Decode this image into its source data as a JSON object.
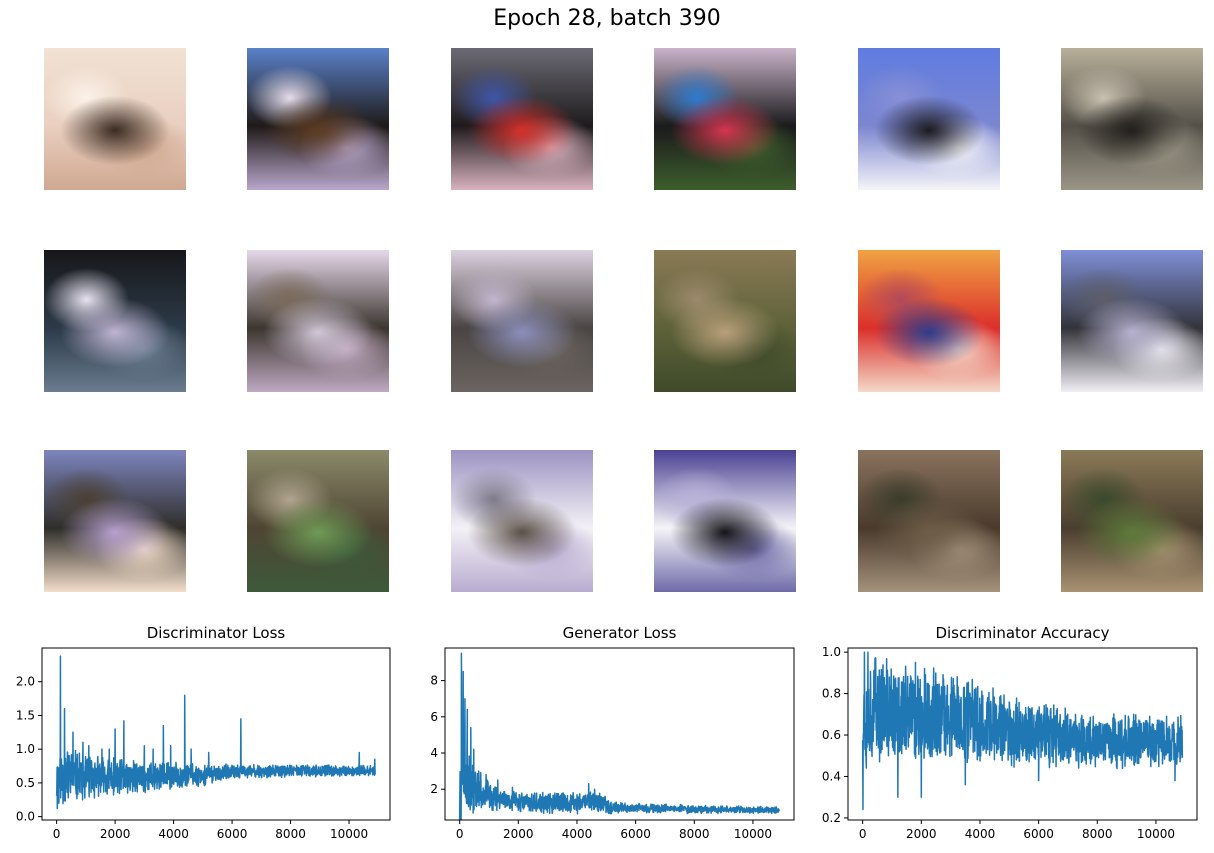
{
  "figure": {
    "title": "Epoch 28, batch 390"
  },
  "samples": [
    {
      "label": "generated sample: cream blob with dark marks",
      "colors": [
        "#f1e2d4",
        "#e9cfc0",
        "#3a2b22",
        "#cfa890",
        "#fbf2e8"
      ]
    },
    {
      "label": "generated sample: dark vehicle on lilac ground",
      "colors": [
        "#5a81c9",
        "#1f1a18",
        "#5d3c22",
        "#b9a7cc",
        "#e5dce8"
      ]
    },
    {
      "label": "generated sample: red vehicle",
      "colors": [
        "#6b6a74",
        "#1f1b1d",
        "#d6302a",
        "#d8b2bf",
        "#3f56a8"
      ]
    },
    {
      "label": "generated sample: colorful car on grass",
      "colors": [
        "#c9b3c9",
        "#1a1a1c",
        "#d4354f",
        "#3d5e2b",
        "#2e7bcf"
      ]
    },
    {
      "label": "generated sample: white boat on blue",
      "colors": [
        "#5f7ce0",
        "#7c86d0",
        "#1b1b20",
        "#f4f4f8",
        "#8890d6"
      ]
    },
    {
      "label": "generated sample: grey truck",
      "colors": [
        "#b8b09a",
        "#545049",
        "#22201c",
        "#9a9585",
        "#c8c0b0"
      ]
    },
    {
      "label": "generated sample: dark scene with white shape",
      "colors": [
        "#17171a",
        "#2c3a48",
        "#bfb4d2",
        "#6a7c90",
        "#e8e2ef"
      ]
    },
    {
      "label": "generated sample: car on lilac",
      "colors": [
        "#e6d8ea",
        "#3c362f",
        "#d2c7d8",
        "#bfa9c1",
        "#7a6a5a"
      ]
    },
    {
      "label": "generated sample: figure on lilac",
      "colors": [
        "#ddd2e0",
        "#4a4544",
        "#8c8fbb",
        "#6b6460",
        "#c2b6cc"
      ]
    },
    {
      "label": "generated sample: foliage",
      "colors": [
        "#8a7a56",
        "#5e6238",
        "#b9a07b",
        "#3f4a2a",
        "#9c8a6d"
      ]
    },
    {
      "label": "generated sample: red and blue blob",
      "colors": [
        "#f0a243",
        "#db2f2b",
        "#2c3d8c",
        "#f4d8c8",
        "#b24a5a"
      ]
    },
    {
      "label": "generated sample: grey shape on blue",
      "colors": [
        "#7f8fd8",
        "#33343a",
        "#b7b2d0",
        "#f1eff5",
        "#5d5e6a"
      ]
    },
    {
      "label": "generated sample: dark object on lilac",
      "colors": [
        "#7d85bd",
        "#2f2e2a",
        "#b7a0cf",
        "#f2ddc9",
        "#4b4033"
      ]
    },
    {
      "label": "generated sample: green blurry animal",
      "colors": [
        "#8b8a6a",
        "#4f4533",
        "#6f9b55",
        "#3c5a3a",
        "#b0a58e"
      ]
    },
    {
      "label": "generated sample: light animal on lilac",
      "colors": [
        "#9d93c2",
        "#f3f1f6",
        "#5a5047",
        "#b9acd0",
        "#7f7a8a"
      ]
    },
    {
      "label": "generated sample: white shape on purple",
      "colors": [
        "#4a4192",
        "#f5f4f8",
        "#15141a",
        "#6e6aa8",
        "#b9b3d8"
      ]
    },
    {
      "label": "generated sample: brown texture",
      "colors": [
        "#8a735e",
        "#4a3a2c",
        "#6e5e48",
        "#a4927c",
        "#3a3c2b"
      ]
    },
    {
      "label": "generated sample: brown and green texture",
      "colors": [
        "#8b7a58",
        "#4a3e2e",
        "#5d7a3a",
        "#a89272",
        "#3a4a2c"
      ]
    }
  ],
  "chart_data": [
    {
      "type": "line",
      "title": "Discriminator Loss",
      "xlabel": "",
      "ylabel": "",
      "xlim": [
        -500,
        11400
      ],
      "ylim": [
        -0.05,
        2.5
      ],
      "xticks": [
        0,
        2000,
        4000,
        6000,
        8000,
        10000
      ],
      "yticks": [
        0.0,
        0.5,
        1.0,
        1.5,
        2.0
      ],
      "ytick_labels": [
        "0.0",
        "0.5",
        "1.0",
        "1.5",
        "2.0"
      ],
      "color": "#1f77b4",
      "grid": false,
      "series": [
        {
          "name": "Discriminator Loss",
          "points_count": 10920,
          "trend": [
            [
              0,
              0.5
            ],
            [
              150,
              0.6
            ],
            [
              1000,
              0.58
            ],
            [
              3000,
              0.58
            ],
            [
              5000,
              0.62
            ],
            [
              6000,
              0.66
            ],
            [
              8000,
              0.68
            ],
            [
              10900,
              0.68
            ]
          ],
          "band": [
            [
              0,
              0.55
            ],
            [
              500,
              0.45
            ],
            [
              2000,
              0.3
            ],
            [
              4000,
              0.22
            ],
            [
              6000,
              0.12
            ],
            [
              8000,
              0.1
            ],
            [
              10900,
              0.08
            ]
          ],
          "spikes": [
            [
              130,
              2.38
            ],
            [
              270,
              1.6
            ],
            [
              560,
              1.25
            ],
            [
              900,
              1.1
            ],
            [
              1100,
              1.05
            ],
            [
              1550,
              1.0
            ],
            [
              1800,
              1.0
            ],
            [
              2000,
              1.3
            ],
            [
              2300,
              1.42
            ],
            [
              3000,
              1.05
            ],
            [
              3300,
              1.0
            ],
            [
              3650,
              1.35
            ],
            [
              3900,
              1.05
            ],
            [
              4380,
              1.8
            ],
            [
              4600,
              1.0
            ],
            [
              5200,
              0.95
            ],
            [
              6300,
              1.45
            ],
            [
              10350,
              0.95
            ],
            [
              10880,
              0.85
            ]
          ]
        }
      ]
    },
    {
      "type": "line",
      "title": "Generator Loss",
      "xlabel": "",
      "ylabel": "",
      "xlim": [
        -500,
        11400
      ],
      "ylim": [
        0.3,
        9.8
      ],
      "xticks": [
        0,
        2000,
        4000,
        6000,
        8000,
        10000
      ],
      "yticks": [
        2,
        4,
        6,
        8
      ],
      "ytick_labels": [
        "2",
        "4",
        "6",
        "8"
      ],
      "color": "#1f77b4",
      "grid": false,
      "series": [
        {
          "name": "Generator Loss",
          "points_count": 10920,
          "trend": [
            [
              0,
              1.2
            ],
            [
              100,
              4.0
            ],
            [
              200,
              3.0
            ],
            [
              500,
              2.0
            ],
            [
              1000,
              1.65
            ],
            [
              2000,
              1.3
            ],
            [
              3000,
              1.2
            ],
            [
              4000,
              1.25
            ],
            [
              4500,
              1.4
            ],
            [
              5200,
              1.0
            ],
            [
              6000,
              0.95
            ],
            [
              8000,
              0.9
            ],
            [
              10900,
              0.85
            ]
          ],
          "band": [
            [
              0,
              3.5
            ],
            [
              200,
              2.2
            ],
            [
              600,
              1.2
            ],
            [
              1500,
              0.6
            ],
            [
              4500,
              0.7
            ],
            [
              5500,
              0.3
            ],
            [
              10900,
              0.2
            ]
          ],
          "spikes": [
            [
              60,
              9.5
            ],
            [
              120,
              8.5
            ],
            [
              180,
              7.0
            ],
            [
              260,
              6.4
            ],
            [
              380,
              5.4
            ],
            [
              480,
              4.2
            ],
            [
              650,
              3.0
            ],
            [
              900,
              2.8
            ],
            [
              1300,
              2.5
            ],
            [
              1800,
              2.1
            ],
            [
              4400,
              2.3
            ],
            [
              4600,
              2.0
            ]
          ]
        }
      ]
    },
    {
      "type": "line",
      "title": "Discriminator Accuracy",
      "xlabel": "",
      "ylabel": "",
      "xlim": [
        -500,
        11400
      ],
      "ylim": [
        0.19,
        1.02
      ],
      "xticks": [
        0,
        2000,
        4000,
        6000,
        8000,
        10000
      ],
      "yticks": [
        0.2,
        0.4,
        0.6,
        0.8,
        1.0
      ],
      "ytick_labels": [
        "0.2",
        "0.4",
        "0.6",
        "0.8",
        "1.0"
      ],
      "color": "#1f77b4",
      "grid": false,
      "series": [
        {
          "name": "Discriminator Accuracy",
          "points_count": 10920,
          "trend": [
            [
              0,
              0.7
            ],
            [
              500,
              0.72
            ],
            [
              2000,
              0.7
            ],
            [
              4000,
              0.66
            ],
            [
              6000,
              0.6
            ],
            [
              8000,
              0.57
            ],
            [
              10900,
              0.57
            ]
          ],
          "band": [
            [
              0,
              0.3
            ],
            [
              1000,
              0.27
            ],
            [
              3000,
              0.24
            ],
            [
              5000,
              0.2
            ],
            [
              7000,
              0.16
            ],
            [
              10900,
              0.13
            ]
          ],
          "spikes": [
            [
              10,
              0.24
            ],
            [
              60,
              1.0
            ],
            [
              180,
              1.0
            ],
            [
              420,
              0.97
            ],
            [
              1200,
              0.3
            ],
            [
              1800,
              0.95
            ],
            [
              2000,
              0.3
            ],
            [
              3500,
              0.36
            ],
            [
              6000,
              0.38
            ],
            [
              10650,
              0.38
            ]
          ]
        }
      ]
    }
  ]
}
